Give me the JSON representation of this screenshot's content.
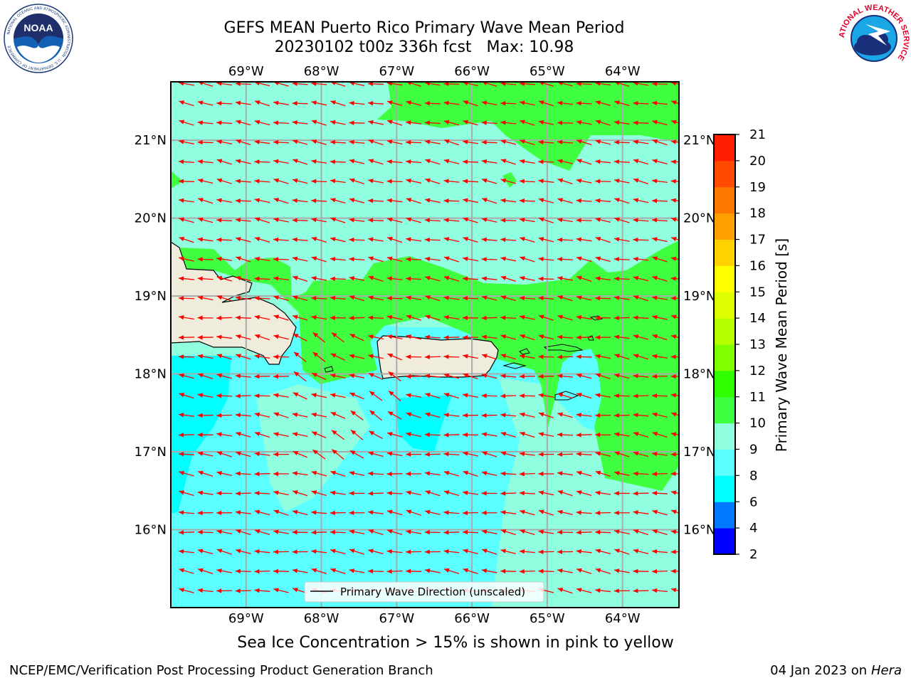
{
  "header": {
    "title": "GEFS MEAN Puerto Rico Primary Wave Mean Period",
    "subtitle_run": "20230102 t00z 336h fcst",
    "subtitle_max": "Max: 10.98"
  },
  "logos": {
    "left": "noaa",
    "right": "national-weather-service",
    "left_seal_text": "NATIONAL OCEANIC AND ATMOSPHERIC ADMINISTRATION · U.S. DEPARTMENT OF COMMERCE",
    "right_seal_text": "NATIONAL WEATHER SERVICE"
  },
  "map": {
    "lon_labels": [
      "69°W",
      "68°W",
      "67°W",
      "66°W",
      "65°W",
      "64°W"
    ],
    "lat_labels": [
      "21°N",
      "20°N",
      "19°N",
      "18°N",
      "17°N",
      "16°N"
    ],
    "lon_range": [
      -70.0,
      -63.25
    ],
    "lat_range": [
      15.0,
      21.75
    ],
    "legend_label": "Primary Wave Direction (unscaled)",
    "arrow_color": "#ff0000",
    "land_color": "#efecdc",
    "coastline_color": "#000000",
    "grid": true
  },
  "colorbar": {
    "label": "Primary Wave Mean Period [s]",
    "ticks": [
      "2",
      "4",
      "6",
      "8",
      "9",
      "10",
      "11",
      "12",
      "13",
      "14",
      "15",
      "16",
      "17",
      "18",
      "19",
      "20",
      "21"
    ],
    "colors": [
      "#0000ff",
      "#0078ff",
      "#00ffff",
      "#5cffff",
      "#90ffe0",
      "#40ff40",
      "#30ff00",
      "#80ff00",
      "#b6ff00",
      "#ddff00",
      "#ffff00",
      "#ffd200",
      "#ffa000",
      "#ff7800",
      "#ff4a00",
      "#ff1e00"
    ]
  },
  "footer": {
    "sea_ice_note": "Sea Ice Concentration > 15% is shown in pink to yellow",
    "credit": "NCEP/EMC/Verification Post Processing Product Generation Branch",
    "date": "04 Jan 2023 on",
    "machine": "Hera"
  }
}
